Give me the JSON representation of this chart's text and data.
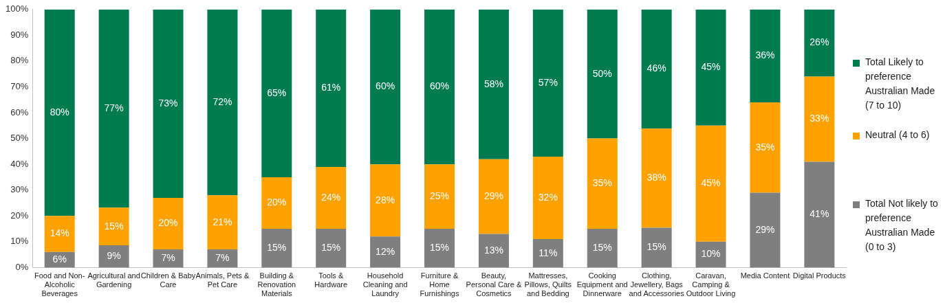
{
  "chart_data": {
    "type": "bar",
    "stacked": true,
    "legend": "right",
    "grid": false,
    "categories": [
      "Food and Non-Alcoholic Beverages",
      "Agricultural and Gardening",
      "Children & Baby Care",
      "Animals, Pets & Pet Care",
      "Building & Renovation Materials",
      "Tools & Hardware",
      "Household Cleaning and Laundry",
      "Furniture & Home Furnishings",
      "Beauty, Personal Care & Cosmetics",
      "Mattresses, Pillows, Quilts and Bedding",
      "Cooking Equipment and Dinnerware",
      "Clothing, Jewellery, Bags and Accessories",
      "Caravan, Camping & Outdoor Living",
      "Media Content",
      "Digital Products"
    ],
    "ylim": [
      0,
      100
    ],
    "yticks": [
      {
        "value": 0,
        "label": "0%"
      },
      {
        "value": 10,
        "label": "10%"
      },
      {
        "value": 20,
        "label": "20%"
      },
      {
        "value": 30,
        "label": "30%"
      },
      {
        "value": 40,
        "label": "40%"
      },
      {
        "value": 50,
        "label": "50%"
      },
      {
        "value": 60,
        "label": "60%"
      },
      {
        "value": 70,
        "label": "70%"
      },
      {
        "value": 80,
        "label": "80%"
      },
      {
        "value": 90,
        "label": "90%"
      },
      {
        "value": 100,
        "label": "100%"
      }
    ],
    "series": [
      {
        "name": "Total Not likely to preference Australian Made (0 to 3)",
        "color": "#7f7f7f",
        "values": [
          6,
          8.6,
          7,
          7,
          15,
          15,
          12,
          15,
          13,
          11,
          15,
          15.4,
          10,
          29,
          41
        ],
        "value_labels": [
          "6%",
          "9%",
          "7%",
          "7%",
          "15%",
          "15%",
          "12%",
          "15%",
          "13%",
          "11%",
          "15%",
          "15%",
          "10%",
          "29%",
          "41%"
        ]
      },
      {
        "name": "Neutral (4 to 6)",
        "color": "#ffa200",
        "values": [
          14,
          14.6,
          20,
          21,
          20,
          24,
          28,
          25,
          29,
          32,
          35,
          38.4,
          45,
          35,
          33
        ],
        "value_labels": [
          "14%",
          "15%",
          "20%",
          "21%",
          "20%",
          "24%",
          "28%",
          "25%",
          "29%",
          "32%",
          "35%",
          "38%",
          "45%",
          "35%",
          "33%"
        ]
      },
      {
        "name": "Total Likely to preference Australian Made (7 to 10)",
        "color": "#007a4f",
        "values": [
          80,
          76.8,
          73,
          72,
          65,
          61,
          60,
          60,
          58,
          57,
          50,
          46.2,
          45,
          36,
          26
        ],
        "value_labels": [
          "80%",
          "77%",
          "73%",
          "72%",
          "65%",
          "61%",
          "60%",
          "60%",
          "58%",
          "57%",
          "50%",
          "46%",
          "45%",
          "36%",
          "26%"
        ]
      }
    ]
  }
}
